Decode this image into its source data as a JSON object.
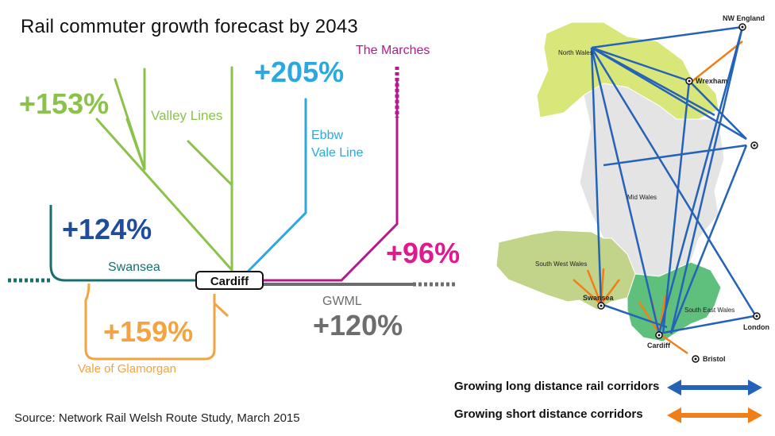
{
  "title": "Rail commuter growth forecast by 2043",
  "source": "Source: Network Rail Welsh Route Study, March 2015",
  "colors": {
    "valley": "#8bc34a",
    "ebbw": "#29a9e0",
    "marches": "#b5198f",
    "swansea": "#17706e",
    "vale": "#f4a340",
    "gwml": "#6d6d6d",
    "pct_124": "#1f4d9e",
    "pct_96": "#e0198f",
    "map_blue": "#2563b8",
    "map_orange": "#f07f1a"
  },
  "lines": {
    "valley": {
      "name": "Valley Lines",
      "growth": "+153%"
    },
    "ebbw": {
      "name": "Ebbw\nVale Line",
      "name_line1": "Ebbw",
      "name_line2": "Vale Line",
      "growth": "+205%"
    },
    "marches": {
      "name": "The Marches",
      "growth": "+96%"
    },
    "swansea": {
      "name": "Swansea",
      "growth": "+124%"
    },
    "vale": {
      "name": "Vale of Glamorgan",
      "growth": "+159%"
    },
    "gwml": {
      "name": "GWML",
      "growth": "+120%"
    }
  },
  "hub": "Cardiff",
  "map": {
    "regions": {
      "north": "North Wales",
      "mid": "Mid Wales",
      "south_west": "South West Wales",
      "south_east": "South East Wales"
    },
    "places": {
      "nw_england": "NW England",
      "wrexham": "Wrexham",
      "swansea": "Swansea",
      "cardiff": "Cardiff",
      "bristol": "Bristol",
      "london": "London"
    }
  },
  "legend": {
    "long": "Growing long distance rail corridors",
    "short": "Growing short distance corridors"
  }
}
